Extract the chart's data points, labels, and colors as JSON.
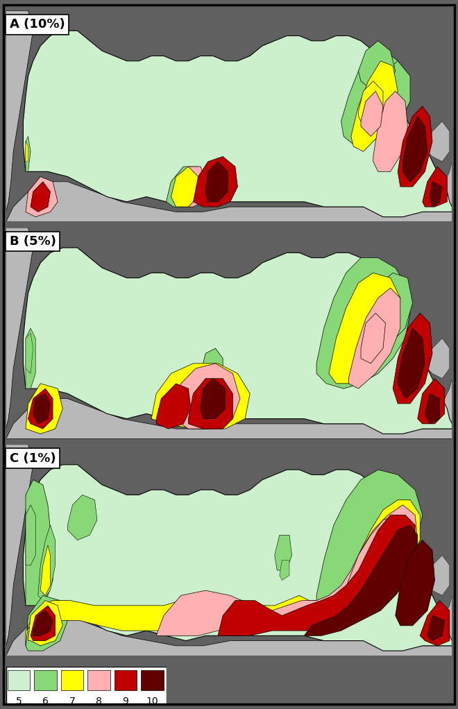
{
  "panels": [
    {
      "label": "A",
      "pct": "10%"
    },
    {
      "label": "B",
      "pct": "5%"
    },
    {
      "label": "C",
      "pct": "1%"
    }
  ],
  "legend_values": [
    "5",
    "6",
    "7",
    "8",
    "9",
    "10"
  ],
  "legend_colors": [
    "#cef0ce",
    "#88d878",
    "#ffff00",
    "#ffb0b0",
    "#c00000",
    "#600000"
  ],
  "ocean_color": "#98e4f0",
  "land_bg_color": "#b8b8b8",
  "russia_base_color": "#ccf0cc",
  "outer_bg": "#606060",
  "border_inner": "#000000",
  "label_fontsize": 13,
  "legend_fontsize": 10,
  "figsize": [
    6.6,
    10.22
  ],
  "dpi": 100,
  "panel_label_bg": "#ffffff"
}
